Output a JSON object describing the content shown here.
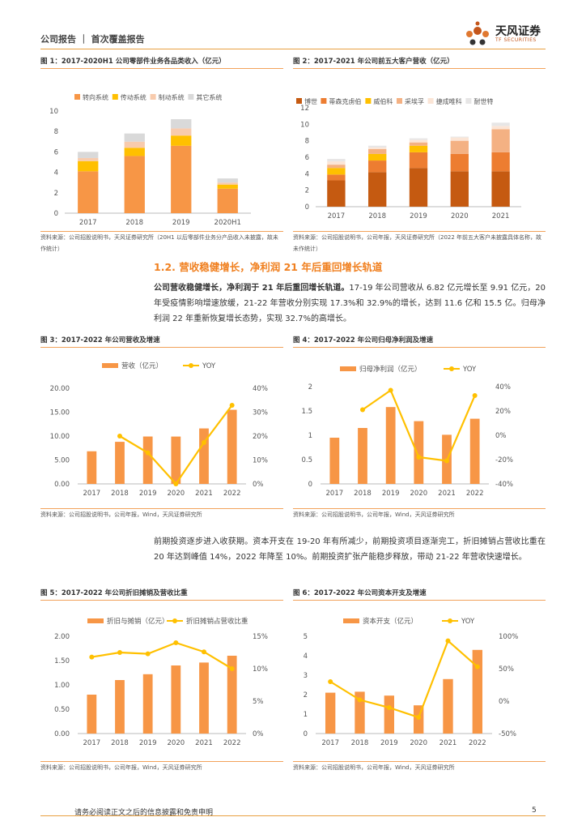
{
  "header": {
    "title": "公司报告 ｜ 首次覆盖报告",
    "logo_cn": "天风证券",
    "logo_en": "TF SECURITIES"
  },
  "colors": {
    "orange": "#F79646",
    "yellow": "#FFC000",
    "gray": "#D9D9D9",
    "pink": "#F4B6A0",
    "dark_orange": "#D9611E",
    "accent": "#F08020"
  },
  "section": {
    "title": "1.2. 营收稳健增长，净利润 21 年后重回增长轨道",
    "para1_bold": "公司营收稳健增长，净利润于 21 年后重回增长轨道。",
    "para1_rest": "17-19 年公司营收从 6.82 亿元增长至 9.91 亿元，20 年受疫情影响增速放缓，21-22 年营收分别实现 17.3%和 32.9%的增长，达到 11.6 亿和 15.5 亿。归母净利润 22 年重新恢复增长态势，实现 32.7%的高增长。",
    "para2": "前期投资逐步进入收获期。资本开支在 19-20 年有所减少，前期投资项目逐渐完工，折旧摊销占营收比重在 20 年达到峰值 14%，2022 年降至 10%。前期投资扩张产能稳步释放，带动 21-22 年营收快速增长。"
  },
  "figures": {
    "fig1": {
      "title": "图 1：2017-2020H1 公司零部件业务各品类收入（亿元）",
      "source": "资料来源：公司招股说明书，天风证券研究所（20H1 以后零部件业务分产品收入未披露，故未作统计）"
    },
    "fig2": {
      "title": "图 2：2017-2021 年公司前五大客户营收（亿元）",
      "source": "资料来源：公司招股说明书，公司年报，天风证券研究所（2022 年前五大客户未披露具体名称，故未作统计）"
    },
    "fig3": {
      "title": "图 3：2017-2022 年公司营收及增速",
      "source": "资料来源：公司招股说明书，公司年报，Wind，天风证券研究所"
    },
    "fig4": {
      "title": "图 4：2017-2022 年公司归母净利润及增速",
      "source": "资料来源：公司招股说明书，公司年报，Wind，天风证券研究所"
    },
    "fig5": {
      "title": "图 5：2017-2022 年公司折旧摊销及营收比重",
      "source": "资料来源：公司招股说明书，公司年报，Wind，天风证券研究所"
    },
    "fig6": {
      "title": "图 6：2017-2022 年公司资本开支及增速",
      "source": "资料来源：公司招股说明书，公司年报，Wind，天风证券研究所"
    }
  },
  "chart_data": [
    {
      "id": "fig1",
      "type": "bar",
      "stacked": true,
      "categories": [
        "2017",
        "2018",
        "2019",
        "2020H1"
      ],
      "series": [
        {
          "name": "转向系统",
          "color": "#F79646",
          "values": [
            4.1,
            5.6,
            6.6,
            2.4
          ]
        },
        {
          "name": "传动系统",
          "color": "#FFC000",
          "values": [
            1.0,
            0.8,
            1.0,
            0.4
          ]
        },
        {
          "name": "制动系统",
          "color": "#F8CBAD",
          "values": [
            0.3,
            0.6,
            0.7,
            0.2
          ]
        },
        {
          "name": "其它系统",
          "color": "#D9D9D9",
          "values": [
            0.6,
            0.8,
            0.9,
            0.4
          ]
        }
      ],
      "ylim": [
        0,
        10
      ],
      "yticks": [
        "0",
        "2",
        "4",
        "6",
        "8",
        "10"
      ]
    },
    {
      "id": "fig2",
      "type": "bar",
      "stacked": true,
      "categories": [
        "2017",
        "2018",
        "2019",
        "2020",
        "2021"
      ],
      "series": [
        {
          "name": "博世",
          "color": "#C55A11",
          "values": [
            3.2,
            4.2,
            4.7,
            4.3,
            4.3
          ]
        },
        {
          "name": "蒂森克虏伯",
          "color": "#ED7D31",
          "values": [
            0.7,
            1.4,
            1.9,
            2.1,
            2.3
          ]
        },
        {
          "name": "威伯科",
          "color": "#FFC000",
          "values": [
            0.8,
            0.8,
            0.8,
            0.0,
            0.0
          ]
        },
        {
          "name": "采埃孚",
          "color": "#F4B183",
          "values": [
            0.4,
            0.6,
            0.4,
            1.6,
            2.8
          ]
        },
        {
          "name": "捷成唯科",
          "color": "#FBE5D6",
          "values": [
            0.4,
            0.2,
            0.3,
            0.4,
            0.4
          ]
        },
        {
          "name": "耐世特",
          "color": "#E7E6E6",
          "values": [
            0.3,
            0.2,
            0.2,
            0.1,
            0.4
          ]
        }
      ],
      "ylim": [
        0,
        12
      ],
      "yticks": [
        "0",
        "2",
        "4",
        "6",
        "8",
        "10",
        "12"
      ]
    },
    {
      "id": "fig3",
      "type": "bar+line",
      "categories": [
        "2017",
        "2018",
        "2019",
        "2020",
        "2021",
        "2022"
      ],
      "bar": {
        "name": "营收（亿元）",
        "values": [
          6.82,
          8.8,
          9.91,
          9.9,
          11.6,
          15.5
        ]
      },
      "line": {
        "name": "YOY",
        "values": [
          null,
          0.2,
          0.13,
          0.0,
          0.173,
          0.329
        ]
      },
      "ylim": [
        0,
        20
      ],
      "yticks": [
        "0.00",
        "5.00",
        "10.00",
        "15.00",
        "20.00"
      ],
      "y2lim": [
        0,
        0.4
      ],
      "y2ticks": [
        "0%",
        "10%",
        "20%",
        "30%",
        "40%"
      ]
    },
    {
      "id": "fig4",
      "type": "bar+line",
      "categories": [
        "2017",
        "2018",
        "2019",
        "2020",
        "2021",
        "2022"
      ],
      "bar": {
        "name": "归母净利润（亿元）",
        "values": [
          0.95,
          1.15,
          1.58,
          1.29,
          1.01,
          1.34
        ]
      },
      "line": {
        "name": "YOY",
        "values": [
          null,
          0.21,
          0.37,
          -0.18,
          -0.21,
          0.327
        ]
      },
      "ylim": [
        0,
        2
      ],
      "yticks": [
        "0",
        "0.5",
        "1",
        "1.5",
        "2"
      ],
      "y2lim": [
        -0.4,
        0.4
      ],
      "y2ticks": [
        "-40%",
        "-20%",
        "0%",
        "20%",
        "40%"
      ]
    },
    {
      "id": "fig5",
      "type": "bar+line",
      "categories": [
        "2017",
        "2018",
        "2019",
        "2020",
        "2021",
        "2022"
      ],
      "bar": {
        "name": "折旧与摊销（亿元）",
        "values": [
          0.8,
          1.1,
          1.22,
          1.4,
          1.46,
          1.6
        ]
      },
      "line": {
        "name": "折旧摊销占营收比重",
        "values": [
          0.118,
          0.125,
          0.123,
          0.14,
          0.126,
          0.1
        ]
      },
      "ylim": [
        0,
        2
      ],
      "yticks": [
        "0.00",
        "0.50",
        "1.00",
        "1.50",
        "2.00"
      ],
      "y2lim": [
        0,
        0.15
      ],
      "y2ticks": [
        "0%",
        "5%",
        "10%",
        "15%"
      ]
    },
    {
      "id": "fig6",
      "type": "bar+line",
      "categories": [
        "2017",
        "2018",
        "2019",
        "2020",
        "2021",
        "2022"
      ],
      "bar": {
        "name": "资本开支（亿元）",
        "values": [
          2.1,
          2.15,
          1.95,
          1.45,
          2.8,
          4.3
        ]
      },
      "line": {
        "name": "YOY",
        "values": [
          0.3,
          0.02,
          -0.1,
          -0.25,
          0.93,
          0.53
        ]
      },
      "ylim": [
        0,
        5
      ],
      "yticks": [
        "0",
        "1",
        "2",
        "3",
        "4",
        "5"
      ],
      "y2lim": [
        -0.5,
        1.0
      ],
      "y2ticks": [
        "-50%",
        "0%",
        "50%",
        "100%"
      ]
    }
  ],
  "footer": {
    "text": "请务必阅读正文之后的信息披露和免责申明",
    "page": "5"
  }
}
